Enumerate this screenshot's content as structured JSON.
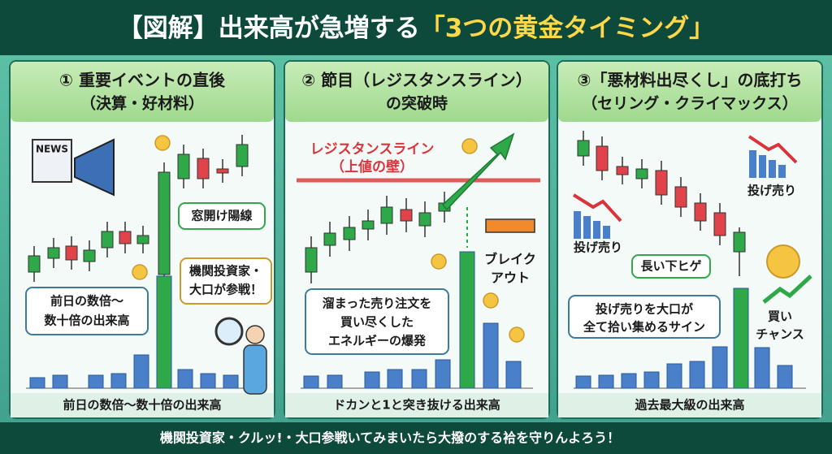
{
  "title": {
    "main": "【図解】出来高が急増する",
    "highlight": "「3つの黄金タイミング」"
  },
  "panels": [
    {
      "heading": [
        "① 重要イベントの直後",
        "（決算・好材料）"
      ],
      "news": "NEWS",
      "gap": "窓開け陽線",
      "investors": [
        "機関投資家・",
        "大口が参戦！"
      ],
      "note": [
        "前日の数倍〜",
        "数十倍の出来高"
      ],
      "footer": "前日の数倍〜数十倍の出来高"
    },
    {
      "heading": [
        "② 節目（レジスタンスライン）",
        "の突破時"
      ],
      "line": [
        "レジスタンスライン",
        "（上値の壁）"
      ],
      "breakout": [
        "ブレイク",
        "アウト"
      ],
      "note": [
        "溜まった売り注文を",
        "買い尽くした",
        "エネルギーの爆発"
      ],
      "footer": "ドカンと1と突き抜ける出来高"
    },
    {
      "heading": [
        "③「悪材料出尽くし」の底打ち",
        "（セリング・クライマックス）"
      ],
      "selloff_left": "投げ売り",
      "selloff_right": "投げ売り",
      "wick": "長い下ヒゲ",
      "note": [
        "投げ売りを大口が",
        "全て拾い集めるサイン"
      ],
      "chance": [
        "買い",
        "チャンス"
      ],
      "footer": "過去最大級の出来高"
    }
  ],
  "banner": "機関投資家・クルッ!・大口参戦いてみまいたら大撥のする袷を守りんよろう！"
}
